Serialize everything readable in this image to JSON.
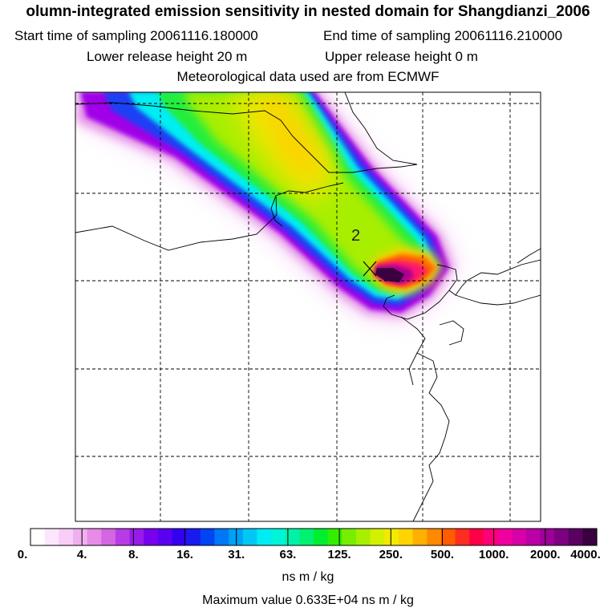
{
  "header": {
    "title": "olumn-integrated emission sensitivity in nested domain for Shangdianzi_2006",
    "start_label": "Start time of sampling 20061116.180000",
    "end_label": "End time of sampling 20061116.210000",
    "lower_label": "Lower release height   20 m",
    "upper_label": "Upper release height    0 m",
    "met_label": "Meteorological data used are from ECMWF"
  },
  "map": {
    "site_marker": "2",
    "release_point_icon": "x-cross-icon"
  },
  "colorbar": {
    "labels": [
      "0.",
      "4.",
      "8.",
      "16.",
      "31.",
      "63.",
      "125.",
      "250.",
      "500.",
      "1000.",
      "2000.",
      "4000."
    ],
    "colors": [
      "#ffffff",
      "#fde6fd",
      "#f8cdf8",
      "#f0b0f0",
      "#e68ce8",
      "#d466e4",
      "#b83ce6",
      "#9a1ae8",
      "#7700ee",
      "#5a00f0",
      "#3300f2",
      "#1a1af0",
      "#0044f2",
      "#0077f4",
      "#00a0f4",
      "#00c8f4",
      "#00ecf4",
      "#00f4d8",
      "#00f2a8",
      "#00f070",
      "#00ee30",
      "#33ee00",
      "#77ee00",
      "#a8ee00",
      "#d4f000",
      "#f2ea00",
      "#ffd400",
      "#ffb000",
      "#ff8a00",
      "#ff5c00",
      "#ff2c20",
      "#ff0048",
      "#ff0078",
      "#f000a0",
      "#d800a8",
      "#bc00a8",
      "#9c0098",
      "#7c0080",
      "#5a0060",
      "#3a0040"
    ]
  },
  "units_label": "ns m / kg",
  "max_value_label": "Maximum value  0.633E+04 ns m / kg"
}
